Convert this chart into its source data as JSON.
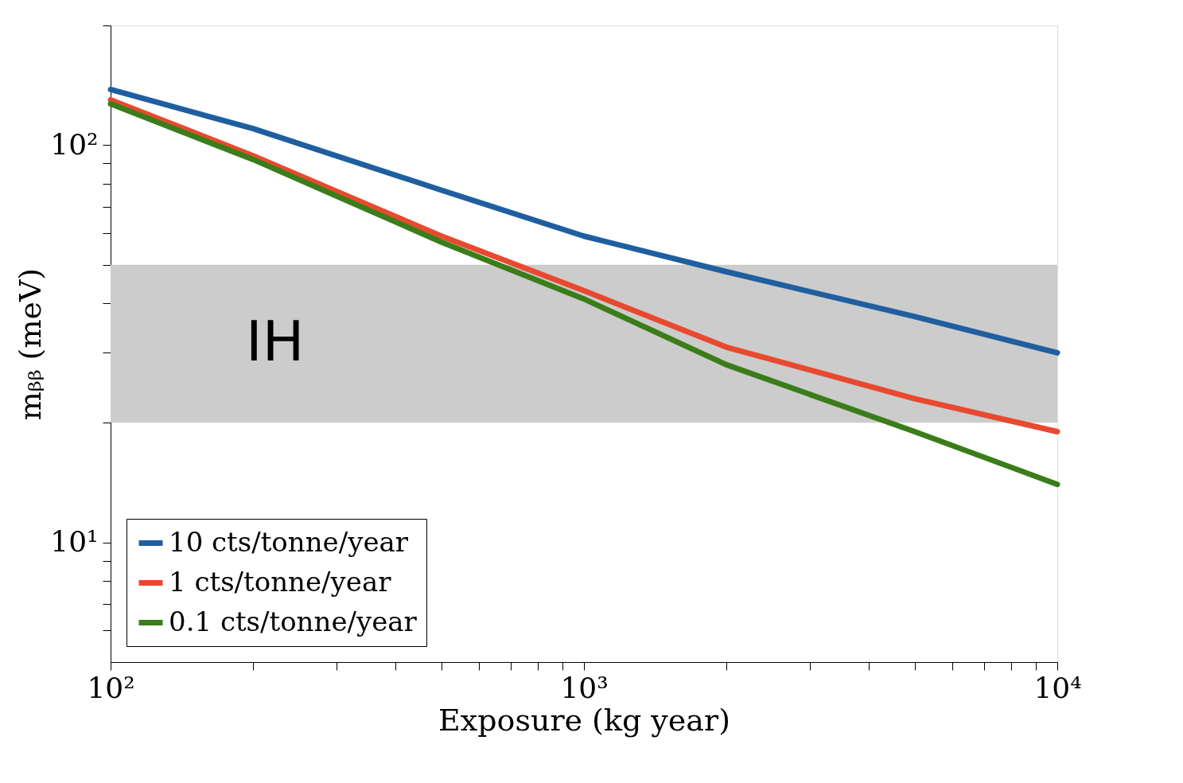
{
  "chart_data": {
    "type": "line",
    "xlabel": "Exposure (kg year)",
    "ylabel": "mᵦᵦ (meV)",
    "log": "xy",
    "grid": false,
    "legend": "bottom left",
    "line_style": "solid",
    "marker": "none",
    "x": [
      100,
      200,
      500,
      1000,
      2000,
      5000,
      10000
    ],
    "xlim": [
      100,
      10000
    ],
    "ylim": [
      5,
      200
    ],
    "xticks": [
      {
        "value": 100,
        "label": "10²"
      },
      {
        "value": 200,
        "label": null
      },
      {
        "value": 300,
        "label": null
      },
      {
        "value": 400,
        "label": null
      },
      {
        "value": 500,
        "label": null
      },
      {
        "value": 600,
        "label": null
      },
      {
        "value": 700,
        "label": null
      },
      {
        "value": 800,
        "label": null
      },
      {
        "value": 900,
        "label": null
      },
      {
        "value": 1000,
        "label": "10³"
      },
      {
        "value": 2000,
        "label": null
      },
      {
        "value": 3000,
        "label": null
      },
      {
        "value": 4000,
        "label": null
      },
      {
        "value": 5000,
        "label": null
      },
      {
        "value": 6000,
        "label": null
      },
      {
        "value": 7000,
        "label": null
      },
      {
        "value": 8000,
        "label": null
      },
      {
        "value": 9000,
        "label": null
      },
      {
        "value": 10000,
        "label": "10⁴"
      }
    ],
    "yticks": [
      {
        "value": 6,
        "label": null
      },
      {
        "value": 7,
        "label": null
      },
      {
        "value": 8,
        "label": null
      },
      {
        "value": 9,
        "label": null
      },
      {
        "value": 10,
        "label": "10¹"
      },
      {
        "value": 20,
        "label": null
      },
      {
        "value": 30,
        "label": null
      },
      {
        "value": 40,
        "label": null
      },
      {
        "value": 50,
        "label": null
      },
      {
        "value": 60,
        "label": null
      },
      {
        "value": 70,
        "label": null
      },
      {
        "value": 80,
        "label": null
      },
      {
        "value": 90,
        "label": null
      },
      {
        "value": 100,
        "label": "10²"
      },
      {
        "value": 200,
        "label": null
      }
    ],
    "series": [
      {
        "name": "10 cts/tonne/year",
        "color": "#1f5fa0",
        "values": [
          138,
          110,
          77,
          59,
          48,
          37,
          30
        ]
      },
      {
        "name": "1 cts/tonne/year",
        "color": "#e8492f",
        "values": [
          130,
          94,
          59,
          43,
          31,
          23,
          19
        ]
      },
      {
        "name": "0.1 cts/tonne/year",
        "color": "#3a7d1a",
        "values": [
          127,
          92,
          57,
          41,
          28,
          19,
          14
        ]
      }
    ],
    "bands": [
      {
        "axis": "y",
        "from": 20,
        "to": 50,
        "label": "IH",
        "color": "#cccccc"
      }
    ]
  }
}
